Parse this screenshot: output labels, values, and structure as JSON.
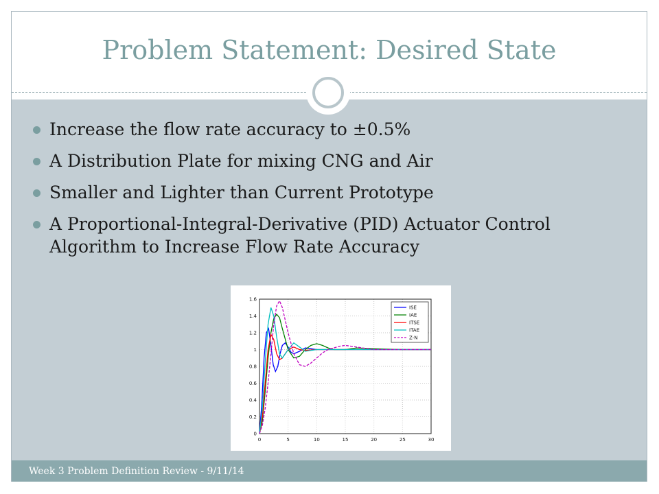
{
  "slide": {
    "title": "Problem Statement: Desired State",
    "bullets": [
      "Increase the flow rate accuracy to ±0.5%",
      "A Distribution Plate for mixing CNG and Air",
      "Smaller and Lighter than Current Prototype",
      "A Proportional-Integral-Derivative (PID) Actuator Control Algorithm to Increase Flow Rate Accuracy"
    ],
    "footer": "Week 3 Problem Definition Review - 9/11/14"
  },
  "chart_data": {
    "type": "line",
    "title": "",
    "xlabel": "",
    "ylabel": "",
    "xlim": [
      0,
      30
    ],
    "ylim": [
      0,
      1.6
    ],
    "xticks": [
      0,
      5,
      10,
      15,
      20,
      25,
      30
    ],
    "yticks": [
      0,
      0.2,
      0.4,
      0.6,
      0.8,
      1,
      1.2,
      1.4,
      1.6
    ],
    "grid": true,
    "legend_position": "top-right",
    "series": [
      {
        "name": "ISE",
        "color": "#0000ff",
        "dash": "solid",
        "x": [
          0,
          0.4,
          0.8,
          1.2,
          1.6,
          2.0,
          2.4,
          2.8,
          3.2,
          3.6,
          4.0,
          4.5,
          5.0,
          5.5,
          6.0,
          7,
          8,
          9,
          10,
          12,
          15,
          20,
          25,
          30
        ],
        "y": [
          0,
          0.35,
          0.9,
          1.2,
          1.25,
          1.05,
          0.82,
          0.74,
          0.8,
          0.95,
          1.05,
          1.08,
          1.03,
          0.97,
          0.95,
          0.98,
          1.02,
          1.01,
          1.0,
          1.0,
          1.0,
          1.0,
          1.0,
          1.0
        ]
      },
      {
        "name": "IAE",
        "color": "#008000",
        "dash": "solid",
        "x": [
          0,
          0.5,
          1,
          1.5,
          2,
          2.5,
          3,
          3.5,
          4,
          5,
          6,
          7,
          8,
          9,
          10,
          11,
          12,
          13,
          15,
          17,
          20,
          25,
          30
        ],
        "y": [
          0,
          0.15,
          0.5,
          0.9,
          1.2,
          1.37,
          1.42,
          1.38,
          1.25,
          1.0,
          0.9,
          0.92,
          1.0,
          1.05,
          1.07,
          1.05,
          1.02,
          1.0,
          1.0,
          1.02,
          1.01,
          1.0,
          1.0
        ]
      },
      {
        "name": "ITSE",
        "color": "#ff0000",
        "dash": "solid",
        "x": [
          0,
          0.5,
          1,
          1.5,
          2,
          2.5,
          3,
          3.5,
          4,
          5,
          6,
          7,
          8,
          10,
          12,
          15,
          20,
          25,
          30
        ],
        "y": [
          0,
          0.2,
          0.6,
          1.0,
          1.18,
          1.12,
          0.95,
          0.88,
          0.9,
          1.0,
          1.03,
          1.0,
          0.99,
          1.0,
          1.0,
          1.0,
          1.0,
          1.0,
          1.0
        ]
      },
      {
        "name": "ITAE",
        "color": "#00bfbf",
        "dash": "solid",
        "x": [
          0,
          0.5,
          1,
          1.5,
          2,
          2.5,
          3,
          3.5,
          4,
          5,
          6,
          7,
          8,
          10,
          12,
          15,
          20,
          25,
          30
        ],
        "y": [
          0,
          0.3,
          0.85,
          1.3,
          1.5,
          1.4,
          1.15,
          0.95,
          0.9,
          1.0,
          1.08,
          1.03,
          0.98,
          1.0,
          1.0,
          1.0,
          1.0,
          1.0,
          1.0
        ]
      },
      {
        "name": "Z-N",
        "color": "#c000c0",
        "dash": "dashed",
        "x": [
          0,
          0.5,
          1,
          1.5,
          2,
          2.5,
          3,
          3.5,
          4,
          4.5,
          5,
          6,
          7,
          8,
          9,
          10,
          11,
          12,
          14,
          15,
          16,
          18,
          20,
          25,
          30
        ],
        "y": [
          0,
          0.1,
          0.3,
          0.6,
          0.95,
          1.3,
          1.52,
          1.58,
          1.5,
          1.35,
          1.2,
          0.95,
          0.82,
          0.8,
          0.84,
          0.9,
          0.96,
          1.0,
          1.04,
          1.05,
          1.04,
          1.02,
          1.0,
          1.0,
          1.0
        ]
      }
    ]
  }
}
